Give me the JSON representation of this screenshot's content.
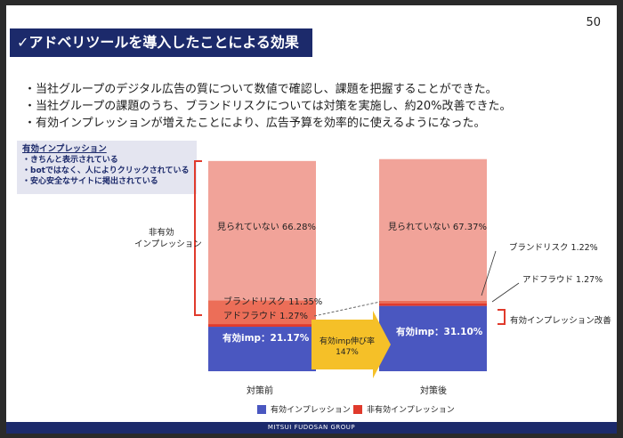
{
  "page_number": "50",
  "title": "✓アドベリツールを導入したことによる効果",
  "bullets": [
    "・当社グループのデジタル広告の質について数値で確認し、課題を把握することができた。",
    "・当社グループの課題のうち、ブランドリスクについては対策を実施し、約20%改善できた。",
    "・有効インプレッションが増えたことにより、広告予算を効率的に使えるようになった。"
  ],
  "note": {
    "title": "有効インプレッション",
    "items": [
      "・きちんと表示されている",
      "・botではなく、人によりクリックされている",
      "・安心安全なサイトに掲出されている"
    ]
  },
  "chart_data": {
    "type": "stacked_bar",
    "categories": [
      "対策前",
      "対策後"
    ],
    "series": [
      {
        "key": "effective",
        "values": [
          21.17,
          31.1
        ],
        "color": "#4a57c0"
      },
      {
        "key": "ad_fraud",
        "values": [
          1.27,
          1.27
        ],
        "color": "#e03a2c"
      },
      {
        "key": "brand_risk",
        "values": [
          11.35,
          1.22
        ],
        "color": "#ec6e58"
      },
      {
        "key": "not_viewed",
        "values": [
          66.28,
          67.37
        ],
        "color": "#f1a399"
      }
    ],
    "labels": {
      "before_not_viewed": "見られていない 66.28%",
      "before_brand_risk": "ブランドリスク 11.35%",
      "before_ad_fraud": "アドフラウド 1.27%",
      "before_effective": "有効imp：21.17%",
      "after_not_viewed": "見られていない 67.37%",
      "after_brand_risk": "ブランドリスク 1.22%",
      "after_ad_fraud": "アドフラウド 1.27%",
      "after_effective": "有効imp：31.10%"
    },
    "non_effective_label_line1": "非有効",
    "non_effective_label_line2": "インプレッション",
    "growth_label_line1": "有効imp伸び率",
    "growth_label_line2": "147%",
    "improvement_label": "有効インプレッション改善",
    "legend": [
      {
        "label": "有効インプレッション",
        "color": "#4a57c0"
      },
      {
        "label": "非有効インプレッション",
        "color": "#e03a2c"
      }
    ]
  },
  "footer": "MITSUI FUDOSAN GROUP"
}
